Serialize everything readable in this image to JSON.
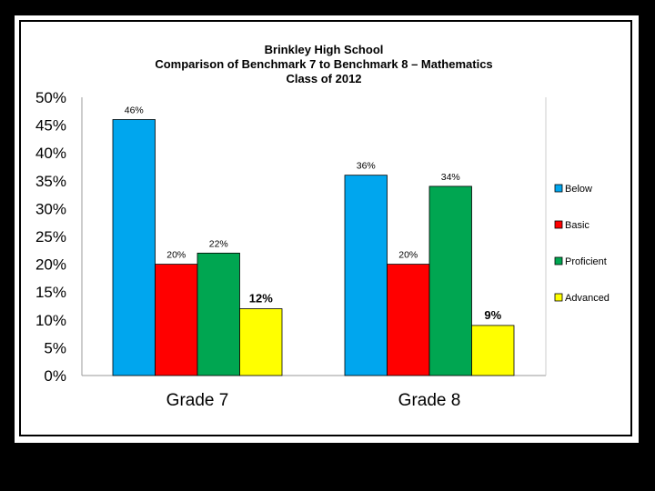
{
  "chart_data": {
    "type": "bar",
    "title": "Brinkley High School",
    "subtitle_lines": [
      "Comparison of Benchmark 7 to Benchmark 8 – Mathematics",
      "Class of 2012"
    ],
    "categories": [
      "Grade 7",
      "Grade 8"
    ],
    "series": [
      {
        "name": "Below",
        "values": [
          46,
          36
        ],
        "labels": [
          "46%",
          "36%"
        ],
        "color": "#00a6ee"
      },
      {
        "name": "Basic",
        "values": [
          20,
          20
        ],
        "labels": [
          "20%",
          "20%"
        ],
        "color": "#ff0000"
      },
      {
        "name": "Proficient",
        "values": [
          22,
          34
        ],
        "labels": [
          "22%",
          "34%"
        ],
        "color": "#00a651"
      },
      {
        "name": "Advanced",
        "values": [
          12,
          9
        ],
        "labels": [
          "12%",
          "9%"
        ],
        "color": "#ffff00"
      }
    ],
    "ylim": [
      0,
      50
    ],
    "y_ticks": [
      "0%",
      "5%",
      "10%",
      "15%",
      "20%",
      "25%",
      "30%",
      "35%",
      "40%",
      "45%",
      "50%"
    ],
    "xlabel": "",
    "ylabel": "",
    "grid": false,
    "legend_position": "right"
  }
}
